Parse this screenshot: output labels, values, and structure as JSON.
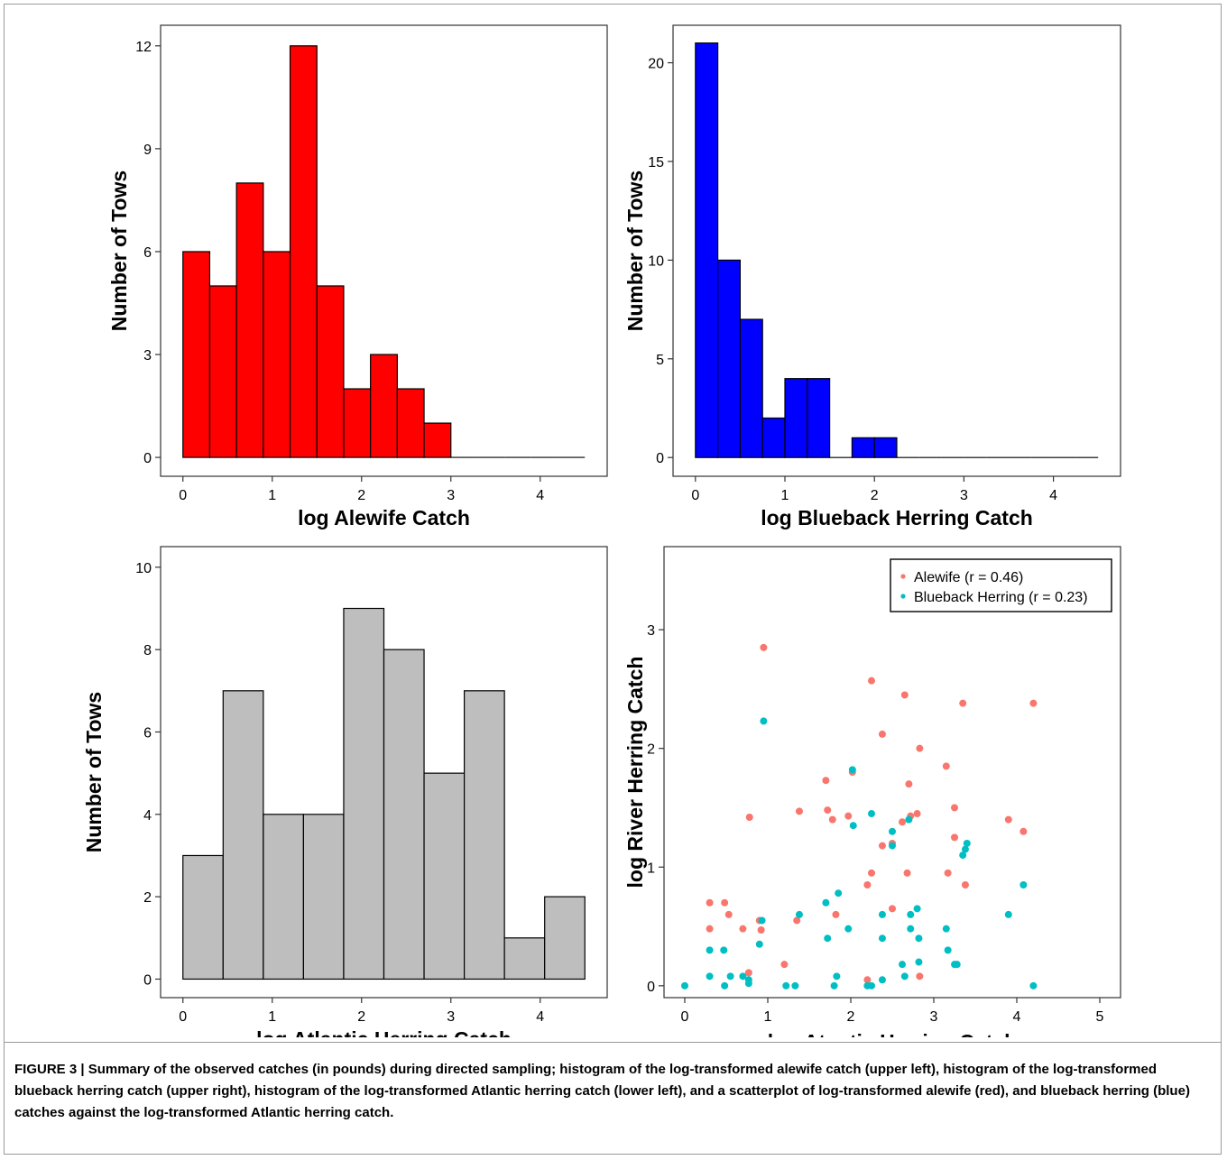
{
  "caption": {
    "label": "FIGURE 3 |",
    "text": "Summary of the observed catches (in pounds) during directed sampling; histogram of the log-transformed alewife catch (upper left), histogram of the log-transformed blueback herring catch (upper right), histogram of the log-transformed Atlantic herring catch (lower left), and a scatterplot of log-transformed alewife (red), and blueback herring (blue) catches against the log-transformed Atlantic herring catch."
  },
  "colors": {
    "alewife_bar": "#ff0000",
    "blueback_bar": "#0000ff",
    "atlantic_bar": "#bebebe",
    "alewife_point": "#f8766d",
    "blueback_point": "#00bfc4"
  },
  "chart_data": [
    {
      "type": "bar",
      "id": "alewife-hist",
      "xlabel": "log Alewife Catch",
      "ylabel": "Number of Tows",
      "xlim": [
        -0.25,
        4.75
      ],
      "ylim": [
        -0.55,
        12.6
      ],
      "xticks": [
        0,
        1,
        2,
        3,
        4
      ],
      "yticks": [
        0,
        3,
        6,
        9,
        12
      ],
      "bin_start": 0,
      "bin_width": 0.3,
      "values": [
        6,
        5,
        8,
        6,
        12,
        5,
        2,
        3,
        2,
        1,
        0,
        0,
        0,
        0,
        0
      ],
      "color": "#ff0000",
      "grid": false
    },
    {
      "type": "bar",
      "id": "blueback-hist",
      "xlabel": "log Blueback Herring Catch",
      "ylabel": "Number of Tows",
      "xlim": [
        -0.25,
        4.75
      ],
      "ylim": [
        -0.95,
        21.9
      ],
      "xticks": [
        0,
        1,
        2,
        3,
        4
      ],
      "yticks": [
        0,
        5,
        10,
        15,
        20
      ],
      "bin_start": 0,
      "bin_width": 0.25,
      "values": [
        21,
        10,
        7,
        2,
        4,
        4,
        0,
        1,
        1,
        0,
        0,
        0,
        0,
        0,
        0,
        0,
        0,
        0
      ],
      "color": "#0000ff",
      "grid": false
    },
    {
      "type": "bar",
      "id": "atlantic-hist",
      "xlabel": "log Atlantic Herring Catch",
      "ylabel": "Number of Tows",
      "xlim": [
        -0.25,
        4.75
      ],
      "ylim": [
        -0.45,
        10.5
      ],
      "xticks": [
        0,
        1,
        2,
        3,
        4
      ],
      "yticks": [
        0,
        2,
        4,
        6,
        8,
        10
      ],
      "bin_start": 0,
      "bin_width": 0.45,
      "values": [
        3,
        7,
        4,
        4,
        9,
        8,
        5,
        7,
        1,
        2
      ],
      "color": "#bebebe",
      "grid": false
    },
    {
      "type": "scatter",
      "id": "river-herring-scatter",
      "xlabel": "log Atantic Herring Catch",
      "ylabel": "log River Herring Catch",
      "xlim": [
        -0.25,
        5.25
      ],
      "ylim": [
        -0.1,
        3.7
      ],
      "xticks": [
        0,
        1,
        2,
        3,
        4,
        5
      ],
      "yticks": [
        0,
        1,
        2,
        3
      ],
      "legend_position": "top-right",
      "grid": false,
      "series": [
        {
          "name": "Alewife (r = 0.46)",
          "color": "#f8766d",
          "points": [
            [
              0.3,
              0.7
            ],
            [
              0.3,
              0.48
            ],
            [
              0.48,
              0.7
            ],
            [
              0.53,
              0.6
            ],
            [
              0.7,
              0.48
            ],
            [
              0.77,
              0.11
            ],
            [
              0.78,
              1.42
            ],
            [
              0.9,
              0.55
            ],
            [
              0.92,
              0.47
            ],
            [
              0.95,
              2.85
            ],
            [
              1.2,
              0.18
            ],
            [
              1.35,
              0.55
            ],
            [
              1.38,
              1.47
            ],
            [
              1.7,
              1.73
            ],
            [
              1.72,
              1.48
            ],
            [
              1.78,
              1.4
            ],
            [
              1.82,
              0.6
            ],
            [
              1.97,
              1.43
            ],
            [
              2.02,
              1.8
            ],
            [
              2.2,
              0.85
            ],
            [
              2.2,
              0.05
            ],
            [
              2.25,
              0.95
            ],
            [
              2.25,
              2.57
            ],
            [
              2.38,
              2.12
            ],
            [
              2.38,
              1.18
            ],
            [
              2.5,
              1.2
            ],
            [
              2.5,
              0.65
            ],
            [
              2.62,
              1.38
            ],
            [
              2.65,
              2.45
            ],
            [
              2.68,
              0.95
            ],
            [
              2.7,
              1.7
            ],
            [
              2.72,
              1.43
            ],
            [
              2.8,
              1.45
            ],
            [
              2.83,
              2.0
            ],
            [
              2.83,
              0.08
            ],
            [
              3.15,
              1.85
            ],
            [
              3.17,
              0.95
            ],
            [
              3.25,
              1.5
            ],
            [
              3.25,
              1.25
            ],
            [
              3.35,
              2.38
            ],
            [
              3.38,
              0.85
            ],
            [
              3.9,
              1.4
            ],
            [
              4.08,
              1.3
            ],
            [
              4.2,
              2.38
            ]
          ]
        },
        {
          "name": "Blueback Herring (r = 0.23)",
          "color": "#00bfc4",
          "points": [
            [
              0.0,
              0.0
            ],
            [
              0.3,
              0.3
            ],
            [
              0.3,
              0.08
            ],
            [
              0.47,
              0.3
            ],
            [
              0.48,
              0.0
            ],
            [
              0.55,
              0.08
            ],
            [
              0.7,
              0.08
            ],
            [
              0.77,
              0.02
            ],
            [
              0.77,
              0.05
            ],
            [
              0.9,
              0.35
            ],
            [
              0.93,
              0.55
            ],
            [
              0.95,
              2.23
            ],
            [
              1.22,
              0.0
            ],
            [
              1.33,
              0.0
            ],
            [
              1.38,
              0.6
            ],
            [
              1.7,
              0.7
            ],
            [
              1.72,
              0.4
            ],
            [
              1.8,
              0.0
            ],
            [
              1.83,
              0.08
            ],
            [
              1.85,
              0.78
            ],
            [
              1.97,
              0.48
            ],
            [
              2.02,
              1.82
            ],
            [
              2.03,
              1.35
            ],
            [
              2.2,
              0.0
            ],
            [
              2.25,
              0.0
            ],
            [
              2.25,
              1.45
            ],
            [
              2.38,
              0.05
            ],
            [
              2.38,
              0.4
            ],
            [
              2.38,
              0.6
            ],
            [
              2.5,
              1.3
            ],
            [
              2.5,
              1.18
            ],
            [
              2.62,
              0.18
            ],
            [
              2.65,
              0.08
            ],
            [
              2.7,
              1.4
            ],
            [
              2.72,
              0.48
            ],
            [
              2.72,
              0.6
            ],
            [
              2.8,
              0.65
            ],
            [
              2.82,
              0.4
            ],
            [
              2.82,
              0.2
            ],
            [
              3.15,
              0.48
            ],
            [
              3.17,
              0.3
            ],
            [
              3.25,
              0.18
            ],
            [
              3.28,
              0.18
            ],
            [
              3.35,
              1.1
            ],
            [
              3.38,
              1.15
            ],
            [
              3.4,
              1.2
            ],
            [
              3.9,
              0.6
            ],
            [
              4.08,
              0.85
            ],
            [
              4.2,
              0.0
            ]
          ]
        }
      ]
    }
  ]
}
